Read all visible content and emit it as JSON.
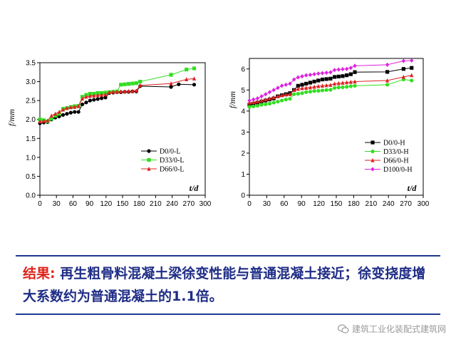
{
  "chart_data": [
    {
      "type": "line",
      "ylabel": "f/mm",
      "xlabel": "t/d",
      "xlim": [
        0,
        300
      ],
      "ylim": [
        0.0,
        3.5
      ],
      "xticks": [
        0,
        30,
        60,
        90,
        120,
        150,
        180,
        210,
        240,
        270,
        300
      ],
      "yticks": [
        0.0,
        0.5,
        1.0,
        1.5,
        2.0,
        2.5,
        3.0,
        3.5
      ],
      "tick_labels_y": [
        "0.0",
        "0.5",
        "1.0",
        "1.5",
        "2.0",
        "2.5",
        "3.0",
        "3.5"
      ],
      "legend_position": "bottom-right",
      "series": [
        {
          "name": "D0/0-L",
          "color": "#000000",
          "marker": "circle",
          "x": [
            0,
            7,
            14,
            21,
            28,
            35,
            42,
            49,
            56,
            63,
            70,
            77,
            84,
            91,
            98,
            105,
            112,
            119,
            126,
            133,
            140,
            147,
            154,
            161,
            168,
            175,
            182,
            238,
            252,
            280
          ],
          "y": [
            1.9,
            1.92,
            1.93,
            2.0,
            2.05,
            2.08,
            2.12,
            2.15,
            2.18,
            2.2,
            2.2,
            2.4,
            2.45,
            2.5,
            2.52,
            2.54,
            2.56,
            2.58,
            2.7,
            2.71,
            2.72,
            2.72,
            2.73,
            2.73,
            2.74,
            2.74,
            2.88,
            2.86,
            2.93,
            2.92
          ]
        },
        {
          "name": "D33/0-L",
          "color": "#33dd22",
          "marker": "square",
          "x": [
            0,
            7,
            14,
            21,
            28,
            35,
            42,
            49,
            56,
            63,
            70,
            77,
            84,
            91,
            98,
            105,
            112,
            119,
            126,
            133,
            140,
            147,
            154,
            161,
            168,
            175,
            182,
            238,
            266,
            280
          ],
          "y": [
            2.0,
            1.98,
            1.95,
            2.02,
            2.1,
            2.15,
            2.28,
            2.3,
            2.33,
            2.35,
            2.36,
            2.6,
            2.65,
            2.68,
            2.68,
            2.7,
            2.7,
            2.71,
            2.72,
            2.73,
            2.74,
            2.92,
            2.93,
            2.94,
            2.95,
            2.96,
            3.0,
            3.18,
            3.32,
            3.35
          ]
        },
        {
          "name": "D66/0-L",
          "color": "#dd2222",
          "marker": "triangle",
          "x": [
            0,
            7,
            14,
            21,
            28,
            35,
            42,
            49,
            56,
            63,
            70,
            77,
            84,
            91,
            98,
            105,
            112,
            119,
            126,
            133,
            140,
            147,
            154,
            161,
            168,
            175,
            182,
            238,
            266,
            280
          ],
          "y": [
            1.95,
            1.96,
            1.97,
            2.1,
            2.15,
            2.2,
            2.26,
            2.3,
            2.32,
            2.33,
            2.35,
            2.55,
            2.6,
            2.62,
            2.63,
            2.64,
            2.65,
            2.66,
            2.72,
            2.73,
            2.73,
            2.74,
            2.74,
            2.75,
            2.75,
            2.76,
            2.9,
            2.95,
            3.06,
            3.08
          ]
        }
      ]
    },
    {
      "type": "line",
      "ylabel": "f/mm",
      "xlabel": "t/d",
      "xlim": [
        0,
        300
      ],
      "ylim": [
        0,
        6.5
      ],
      "xticks": [
        0,
        30,
        60,
        90,
        120,
        150,
        180,
        210,
        240,
        270,
        300
      ],
      "yticks": [
        0,
        1,
        2,
        3,
        4,
        5,
        6
      ],
      "tick_labels_y": [
        "0",
        "1",
        "2",
        "3",
        "4",
        "5",
        "6"
      ],
      "legend_position": "bottom-right",
      "series": [
        {
          "name": "D0/0-H",
          "color": "#000000",
          "marker": "square",
          "x": [
            0,
            7,
            14,
            21,
            28,
            35,
            42,
            49,
            56,
            63,
            70,
            77,
            84,
            91,
            98,
            105,
            112,
            119,
            126,
            133,
            140,
            147,
            154,
            161,
            168,
            175,
            182,
            238,
            266,
            280
          ],
          "y": [
            4.3,
            4.35,
            4.4,
            4.45,
            4.5,
            4.55,
            4.6,
            4.7,
            4.75,
            4.8,
            4.85,
            5.0,
            5.2,
            5.25,
            5.3,
            5.35,
            5.4,
            5.45,
            5.5,
            5.52,
            5.54,
            5.62,
            5.64,
            5.66,
            5.7,
            5.75,
            5.85,
            5.86,
            6.0,
            6.05
          ]
        },
        {
          "name": "D33/0-H",
          "color": "#33dd22",
          "marker": "circle",
          "x": [
            0,
            7,
            14,
            21,
            28,
            35,
            42,
            49,
            56,
            63,
            70,
            77,
            84,
            91,
            98,
            105,
            112,
            119,
            126,
            133,
            140,
            147,
            154,
            161,
            168,
            175,
            182,
            238,
            266,
            280
          ],
          "y": [
            4.2,
            4.22,
            4.25,
            4.3,
            4.32,
            4.35,
            4.4,
            4.45,
            4.5,
            4.55,
            4.58,
            4.8,
            4.82,
            4.85,
            4.9,
            4.92,
            4.95,
            4.96,
            4.98,
            5.0,
            5.01,
            5.1,
            5.12,
            5.13,
            5.15,
            5.18,
            5.2,
            5.25,
            5.5,
            5.45
          ]
        },
        {
          "name": "D66/0-H",
          "color": "#dd2222",
          "marker": "triangle",
          "x": [
            0,
            7,
            14,
            21,
            28,
            35,
            42,
            49,
            56,
            63,
            70,
            77,
            84,
            91,
            98,
            105,
            112,
            119,
            126,
            133,
            140,
            147,
            154,
            161,
            168,
            175,
            182,
            238,
            266,
            280
          ],
          "y": [
            4.4,
            4.42,
            4.45,
            4.5,
            4.55,
            4.6,
            4.65,
            4.7,
            4.75,
            4.78,
            4.8,
            5.0,
            5.05,
            5.08,
            5.1,
            5.12,
            5.15,
            5.18,
            5.2,
            5.22,
            5.24,
            5.3,
            5.32,
            5.34,
            5.36,
            5.38,
            5.4,
            5.45,
            5.62,
            5.7
          ]
        },
        {
          "name": "D100/0-H",
          "color": "#dd22dd",
          "marker": "diamond",
          "x": [
            0,
            7,
            14,
            21,
            28,
            35,
            42,
            49,
            56,
            63,
            70,
            77,
            84,
            91,
            98,
            105,
            112,
            119,
            126,
            133,
            140,
            147,
            154,
            161,
            168,
            175,
            182,
            238,
            266,
            280
          ],
          "y": [
            4.5,
            4.55,
            4.6,
            4.7,
            4.8,
            4.9,
            5.0,
            5.1,
            5.2,
            5.25,
            5.3,
            5.5,
            5.6,
            5.65,
            5.7,
            5.72,
            5.75,
            5.78,
            5.8,
            5.82,
            5.84,
            5.95,
            5.97,
            5.99,
            6.0,
            6.05,
            6.15,
            6.2,
            6.38,
            6.4
          ]
        }
      ]
    }
  ],
  "result": {
    "label": "结果:",
    "text": " 再生粗骨料混凝土梁徐变性能与普通混凝土接近；徐变挠度增大系数约为普通混凝土的1.1倍。"
  },
  "watermark": {
    "text": "建筑工业化装配式建筑网",
    "icon": "wechat-icon"
  }
}
